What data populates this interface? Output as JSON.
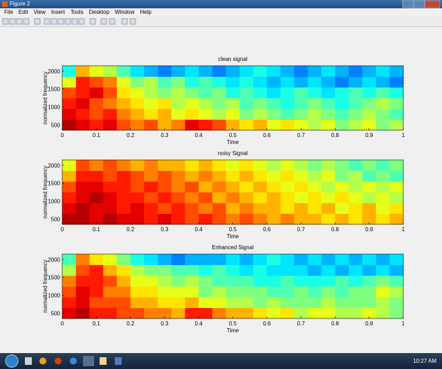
{
  "window": {
    "title": "Figure 2",
    "menu": [
      "File",
      "Edit",
      "View",
      "Insert",
      "Tools",
      "Desktop",
      "Window",
      "Help"
    ]
  },
  "chart_data": [
    {
      "type": "heatmap",
      "title": "clean signal",
      "x_label": "Time",
      "y_label": "normalized frequency",
      "xlim": [
        0,
        1
      ],
      "ylim": [
        350,
        2150
      ],
      "xticks": [
        0,
        0.1,
        0.2,
        0.3,
        0.4,
        0.5,
        0.6,
        0.7,
        0.8,
        0.9,
        1
      ],
      "yticks": [
        500,
        1000,
        1500,
        2000
      ],
      "colormap": "jet",
      "clim": [
        0,
        1
      ],
      "z": [
        [
          0.95,
          0.9,
          0.85,
          0.9,
          0.8,
          0.75,
          0.8,
          0.7,
          0.75,
          0.9,
          0.85,
          0.8,
          0.7,
          0.65,
          0.7,
          0.6,
          0.65,
          0.6,
          0.55,
          0.6,
          0.5,
          0.55,
          0.6,
          0.5,
          0.55
        ],
        [
          0.9,
          0.85,
          0.8,
          0.85,
          0.75,
          0.7,
          0.65,
          0.7,
          0.6,
          0.65,
          0.6,
          0.55,
          0.6,
          0.5,
          0.55,
          0.5,
          0.45,
          0.5,
          0.55,
          0.5,
          0.45,
          0.5,
          0.55,
          0.5,
          0.45
        ],
        [
          0.85,
          0.9,
          0.8,
          0.75,
          0.7,
          0.65,
          0.6,
          0.65,
          0.55,
          0.6,
          0.55,
          0.5,
          0.55,
          0.45,
          0.5,
          0.45,
          0.4,
          0.45,
          0.5,
          0.45,
          0.4,
          0.45,
          0.5,
          0.55,
          0.5
        ],
        [
          0.8,
          0.85,
          0.9,
          0.8,
          0.65,
          0.6,
          0.55,
          0.5,
          0.55,
          0.5,
          0.45,
          0.5,
          0.4,
          0.45,
          0.4,
          0.35,
          0.4,
          0.45,
          0.4,
          0.35,
          0.4,
          0.45,
          0.4,
          0.45,
          0.4
        ],
        [
          0.6,
          0.85,
          0.8,
          0.75,
          0.6,
          0.5,
          0.55,
          0.45,
          0.5,
          0.4,
          0.45,
          0.4,
          0.35,
          0.4,
          0.35,
          0.3,
          0.35,
          0.3,
          0.35,
          0.3,
          0.25,
          0.3,
          0.35,
          0.3,
          0.25
        ],
        [
          0.4,
          0.7,
          0.6,
          0.55,
          0.45,
          0.35,
          0.3,
          0.25,
          0.3,
          0.35,
          0.3,
          0.25,
          0.3,
          0.35,
          0.4,
          0.35,
          0.3,
          0.25,
          0.3,
          0.35,
          0.3,
          0.25,
          0.3,
          0.35,
          0.3
        ]
      ]
    },
    {
      "type": "heatmap",
      "title": "noisy Signal",
      "x_label": "Time",
      "y_label": "normalized frequency",
      "xlim": [
        0,
        1
      ],
      "ylim": [
        350,
        2150
      ],
      "xticks": [
        0,
        0.1,
        0.2,
        0.3,
        0.4,
        0.5,
        0.6,
        0.7,
        0.8,
        0.9,
        1
      ],
      "yticks": [
        500,
        1000,
        1500,
        2000
      ],
      "colormap": "jet",
      "clim": [
        0,
        1
      ],
      "z": [
        [
          0.95,
          0.95,
          0.9,
          0.95,
          0.9,
          0.9,
          0.85,
          0.9,
          0.85,
          0.8,
          0.85,
          0.8,
          0.75,
          0.8,
          0.75,
          0.7,
          0.75,
          0.7,
          0.7,
          0.65,
          0.7,
          0.65,
          0.7,
          0.65,
          0.7
        ],
        [
          0.9,
          0.95,
          0.9,
          0.9,
          0.85,
          0.9,
          0.85,
          0.8,
          0.85,
          0.8,
          0.75,
          0.8,
          0.7,
          0.75,
          0.7,
          0.7,
          0.65,
          0.7,
          0.65,
          0.7,
          0.6,
          0.65,
          0.7,
          0.6,
          0.65
        ],
        [
          0.85,
          0.9,
          0.95,
          0.9,
          0.85,
          0.85,
          0.8,
          0.85,
          0.8,
          0.75,
          0.8,
          0.7,
          0.75,
          0.7,
          0.65,
          0.7,
          0.65,
          0.6,
          0.65,
          0.6,
          0.65,
          0.6,
          0.55,
          0.6,
          0.55
        ],
        [
          0.8,
          0.9,
          0.9,
          0.85,
          0.85,
          0.8,
          0.85,
          0.8,
          0.75,
          0.8,
          0.7,
          0.75,
          0.7,
          0.65,
          0.7,
          0.65,
          0.6,
          0.65,
          0.6,
          0.55,
          0.6,
          0.55,
          0.6,
          0.55,
          0.6
        ],
        [
          0.7,
          0.85,
          0.85,
          0.8,
          0.85,
          0.8,
          0.75,
          0.8,
          0.75,
          0.7,
          0.75,
          0.7,
          0.65,
          0.7,
          0.65,
          0.6,
          0.65,
          0.6,
          0.55,
          0.6,
          0.5,
          0.55,
          0.45,
          0.5,
          0.45
        ],
        [
          0.6,
          0.8,
          0.75,
          0.8,
          0.75,
          0.7,
          0.75,
          0.7,
          0.7,
          0.65,
          0.7,
          0.65,
          0.6,
          0.65,
          0.6,
          0.55,
          0.6,
          0.55,
          0.5,
          0.55,
          0.5,
          0.45,
          0.5,
          0.45,
          0.5
        ]
      ]
    },
    {
      "type": "heatmap",
      "title": "Enhanced Signal",
      "x_label": "Time",
      "y_label": "normalized frequency",
      "xlim": [
        0,
        1
      ],
      "ylim": [
        350,
        2150
      ],
      "xticks": [
        0,
        0.1,
        0.2,
        0.3,
        0.4,
        0.5,
        0.6,
        0.7,
        0.8,
        0.9,
        1
      ],
      "yticks": [
        500,
        1000,
        1500,
        2000
      ],
      "colormap": "jet",
      "clim": [
        0,
        1
      ],
      "z": [
        [
          0.9,
          0.95,
          0.85,
          0.85,
          0.8,
          0.8,
          0.75,
          0.75,
          0.7,
          0.85,
          0.85,
          0.75,
          0.7,
          0.7,
          0.65,
          0.6,
          0.65,
          0.55,
          0.6,
          0.6,
          0.55,
          0.55,
          0.6,
          0.55,
          0.5
        ],
        [
          0.85,
          0.9,
          0.8,
          0.8,
          0.8,
          0.7,
          0.7,
          0.65,
          0.65,
          0.7,
          0.6,
          0.6,
          0.55,
          0.55,
          0.5,
          0.55,
          0.5,
          0.5,
          0.5,
          0.55,
          0.5,
          0.5,
          0.5,
          0.55,
          0.5
        ],
        [
          0.8,
          0.9,
          0.85,
          0.75,
          0.75,
          0.65,
          0.65,
          0.6,
          0.6,
          0.6,
          0.5,
          0.55,
          0.5,
          0.5,
          0.5,
          0.45,
          0.45,
          0.5,
          0.45,
          0.5,
          0.45,
          0.5,
          0.5,
          0.6,
          0.55
        ],
        [
          0.75,
          0.85,
          0.85,
          0.8,
          0.7,
          0.6,
          0.6,
          0.55,
          0.5,
          0.55,
          0.5,
          0.45,
          0.45,
          0.45,
          0.4,
          0.4,
          0.45,
          0.4,
          0.4,
          0.4,
          0.45,
          0.4,
          0.45,
          0.5,
          0.45
        ],
        [
          0.55,
          0.8,
          0.85,
          0.7,
          0.65,
          0.55,
          0.5,
          0.5,
          0.45,
          0.45,
          0.4,
          0.45,
          0.4,
          0.35,
          0.4,
          0.35,
          0.35,
          0.35,
          0.3,
          0.35,
          0.3,
          0.35,
          0.3,
          0.35,
          0.3
        ],
        [
          0.45,
          0.75,
          0.65,
          0.6,
          0.5,
          0.4,
          0.35,
          0.3,
          0.25,
          0.3,
          0.3,
          0.3,
          0.35,
          0.3,
          0.35,
          0.4,
          0.35,
          0.3,
          0.35,
          0.3,
          0.35,
          0.3,
          0.35,
          0.3,
          0.35
        ]
      ]
    }
  ],
  "taskbar": {
    "time": "10:27 AM"
  }
}
